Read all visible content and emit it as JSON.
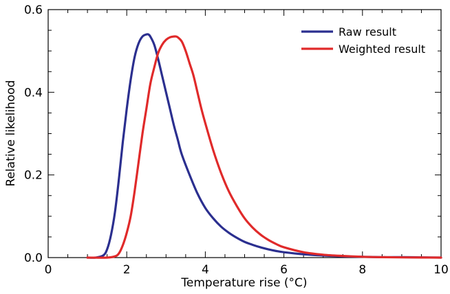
{
  "chart_data": {
    "type": "line",
    "title": "",
    "xlabel": "Temperature rise (°C)",
    "ylabel": "Relative likelihood",
    "xlim": [
      0,
      10
    ],
    "ylim": [
      0,
      0.6
    ],
    "x_ticks": [
      0,
      2,
      4,
      6,
      8,
      10
    ],
    "x_tick_labels": [
      "0",
      "2",
      "4",
      "6",
      "8",
      "10"
    ],
    "y_ticks": [
      0,
      0.2,
      0.4,
      0.6
    ],
    "y_tick_labels": [
      "0.0",
      "0.2",
      "0.4",
      "0.6"
    ],
    "grid": false,
    "legend_position": "top-right",
    "series": [
      {
        "name": "Raw result",
        "color": "#2b2f8f",
        "x": [
          1.0,
          1.2,
          1.4,
          1.5,
          1.6,
          1.7,
          1.8,
          1.9,
          2.0,
          2.1,
          2.2,
          2.3,
          2.4,
          2.5,
          2.55,
          2.6,
          2.7,
          2.8,
          2.9,
          3.0,
          3.1,
          3.2,
          3.3,
          3.4,
          3.6,
          3.8,
          4.0,
          4.2,
          4.4,
          4.6,
          4.8,
          5.0,
          5.2,
          5.4,
          5.6,
          5.8,
          6.0,
          6.5,
          7.0,
          7.5,
          8.0,
          8.5,
          9.0,
          9.5,
          10.0
        ],
        "y": [
          0.0,
          0.0,
          0.005,
          0.02,
          0.055,
          0.11,
          0.19,
          0.28,
          0.36,
          0.43,
          0.485,
          0.518,
          0.535,
          0.54,
          0.54,
          0.535,
          0.515,
          0.48,
          0.44,
          0.4,
          0.36,
          0.32,
          0.285,
          0.25,
          0.2,
          0.155,
          0.12,
          0.095,
          0.075,
          0.06,
          0.048,
          0.038,
          0.031,
          0.025,
          0.02,
          0.016,
          0.013,
          0.008,
          0.005,
          0.003,
          0.002,
          0.001,
          0.001,
          0.0005,
          0.0
        ]
      },
      {
        "name": "Weighted result",
        "color": "#e02a2a",
        "x": [
          1.0,
          1.5,
          1.7,
          1.8,
          1.9,
          2.0,
          2.1,
          2.2,
          2.3,
          2.4,
          2.5,
          2.6,
          2.7,
          2.8,
          2.9,
          3.0,
          3.1,
          3.2,
          3.25,
          3.3,
          3.4,
          3.5,
          3.6,
          3.7,
          3.8,
          3.9,
          4.0,
          4.2,
          4.4,
          4.6,
          4.8,
          5.0,
          5.2,
          5.4,
          5.6,
          5.8,
          6.0,
          6.5,
          7.0,
          7.5,
          8.0,
          8.5,
          9.0,
          9.5,
          10.0
        ],
        "y": [
          0.0,
          0.0,
          0.003,
          0.01,
          0.03,
          0.06,
          0.1,
          0.16,
          0.23,
          0.3,
          0.36,
          0.42,
          0.46,
          0.495,
          0.515,
          0.527,
          0.533,
          0.535,
          0.535,
          0.533,
          0.523,
          0.5,
          0.47,
          0.44,
          0.4,
          0.36,
          0.325,
          0.26,
          0.205,
          0.16,
          0.125,
          0.095,
          0.073,
          0.056,
          0.043,
          0.033,
          0.025,
          0.013,
          0.007,
          0.004,
          0.002,
          0.001,
          0.0005,
          0.0002,
          0.0
        ]
      }
    ]
  }
}
